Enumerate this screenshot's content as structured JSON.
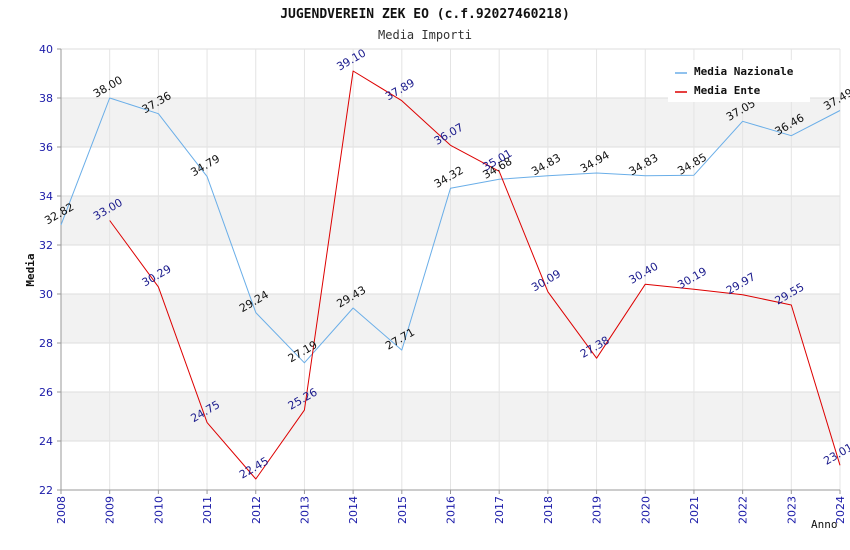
{
  "chart_data": {
    "type": "line",
    "title": "JUGENDVEREIN ZEK EO (c.f.92027460218)",
    "subtitle": "Media Importi",
    "xlabel": "Anno",
    "ylabel": "Media",
    "ylim": [
      22,
      40
    ],
    "yticks": [
      "22",
      "24",
      "26",
      "28",
      "30",
      "32",
      "34",
      "36",
      "38",
      "40"
    ],
    "x": [
      "2008",
      "2009",
      "2010",
      "2011",
      "2012",
      "2013",
      "2014",
      "2015",
      "2016",
      "2017",
      "2018",
      "2019",
      "2020",
      "2021",
      "2022",
      "2023",
      "2024"
    ],
    "grid": true,
    "legend_position": "top-right",
    "series": [
      {
        "name": "Media Nazionale",
        "color": "#6aaee8",
        "label_color": "#111111",
        "values": [
          32.82,
          38.0,
          37.36,
          34.79,
          29.24,
          27.19,
          29.43,
          27.71,
          34.32,
          34.68,
          34.83,
          34.94,
          34.83,
          34.85,
          37.05,
          36.46,
          37.49
        ],
        "labels": [
          "32.82",
          "38.00",
          "37.36",
          "34.79",
          "29.24",
          "27.19",
          "29.43",
          "27.71",
          "34.32",
          "34.68",
          "34.83",
          "34.94",
          "34.83",
          "34.85",
          "37.05",
          "36.46",
          "37.49"
        ]
      },
      {
        "name": "Media Ente",
        "color": "#dd0000",
        "label_color": "#1a1a8c",
        "values": [
          null,
          33.0,
          30.29,
          24.75,
          22.45,
          25.26,
          39.1,
          37.89,
          36.07,
          35.01,
          30.09,
          27.38,
          30.4,
          30.19,
          29.97,
          29.55,
          23.01
        ],
        "labels": [
          null,
          "33.00",
          "30.29",
          "24.75",
          "22.45",
          "25.26",
          "39.10",
          "37.89",
          "36.07",
          "35.01",
          "30.09",
          "27.38",
          "30.40",
          "30.19",
          "29.97",
          "29.55",
          "23.01"
        ]
      }
    ]
  }
}
